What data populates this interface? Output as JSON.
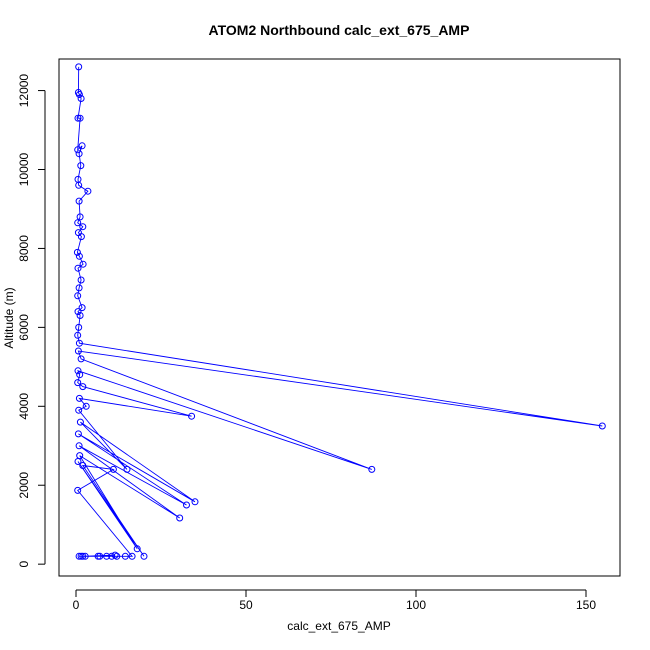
{
  "chart_data": {
    "type": "line",
    "title": "ATOM2 Northbound calc_ext_675_AMP",
    "xlabel": "calc_ext_675_AMP",
    "ylabel": "Altitude (m)",
    "xlim": [
      -5,
      160
    ],
    "ylim": [
      -300,
      12800
    ],
    "xticks": [
      0,
      50,
      100,
      150
    ],
    "yticks": [
      0,
      2000,
      4000,
      6000,
      8000,
      10000,
      12000
    ],
    "grid": false,
    "series": [
      {
        "color": "#0000ff",
        "marker": "open-circle",
        "points": [
          [
            0.8,
            12600
          ],
          [
            0.7,
            11950
          ],
          [
            1.0,
            11900
          ],
          [
            1.5,
            11800
          ],
          [
            0.6,
            11300
          ],
          [
            1.2,
            11300
          ],
          [
            0.5,
            10500
          ],
          [
            1.8,
            10600
          ],
          [
            0.9,
            10400
          ],
          [
            1.4,
            10100
          ],
          [
            0.6,
            9750
          ],
          [
            0.8,
            9600
          ],
          [
            3.5,
            9450
          ],
          [
            0.9,
            9200
          ],
          [
            1.2,
            8800
          ],
          [
            0.5,
            8650
          ],
          [
            2.0,
            8550
          ],
          [
            0.7,
            8400
          ],
          [
            1.6,
            8300
          ],
          [
            0.4,
            7900
          ],
          [
            1.0,
            7800
          ],
          [
            2.1,
            7600
          ],
          [
            0.6,
            7500
          ],
          [
            1.5,
            7200
          ],
          [
            0.9,
            7000
          ],
          [
            0.5,
            6800
          ],
          [
            1.8,
            6500
          ],
          [
            0.6,
            6400
          ],
          [
            1.2,
            6300
          ],
          [
            0.8,
            6000
          ],
          [
            0.5,
            5800
          ],
          [
            1.0,
            5600
          ],
          [
            154.8,
            3500
          ],
          [
            0.7,
            5400
          ],
          [
            1.5,
            5200
          ],
          [
            87.0,
            2400
          ],
          [
            0.6,
            4900
          ],
          [
            1.1,
            4800
          ],
          [
            0.5,
            4600
          ],
          [
            2.0,
            4500
          ],
          [
            34.0,
            3750
          ],
          [
            1.0,
            4200
          ],
          [
            3.0,
            4000
          ],
          [
            0.8,
            3900
          ],
          [
            15.0,
            2400
          ],
          [
            1.3,
            3600
          ],
          [
            35.0,
            1580
          ],
          [
            0.7,
            3300
          ],
          [
            32.5,
            1500
          ],
          [
            0.9,
            3000
          ],
          [
            30.5,
            1170
          ],
          [
            1.1,
            2750
          ],
          [
            18.0,
            390
          ],
          [
            0.6,
            2600
          ],
          [
            20.0,
            200
          ],
          [
            2.0,
            2500
          ],
          [
            11.0,
            2400
          ],
          [
            0.5,
            1870
          ],
          [
            16.5,
            200
          ],
          [
            1.5,
            200
          ],
          [
            12.0,
            200
          ],
          [
            0.9,
            200
          ],
          [
            10.5,
            200
          ],
          [
            6.5,
            200
          ],
          [
            2.7,
            200
          ],
          [
            9.0,
            200
          ],
          [
            14.5,
            200
          ],
          [
            7.0,
            200
          ],
          [
            11.5,
            230
          ],
          [
            2.0,
            200
          ]
        ]
      }
    ]
  }
}
